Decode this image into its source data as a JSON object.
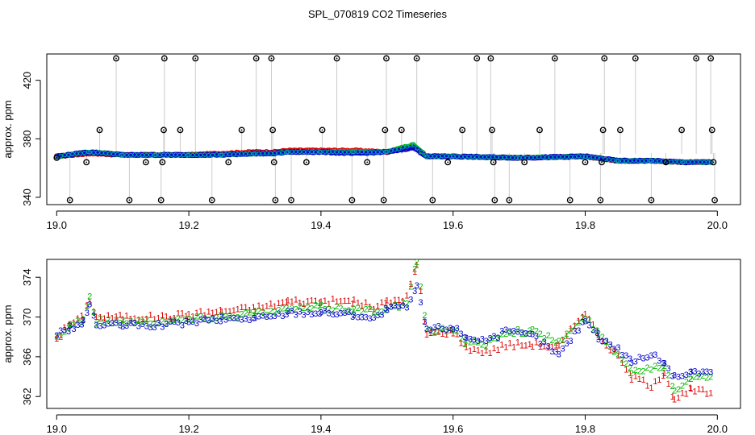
{
  "figure": {
    "title": "SPL_070819  CO2 Timeseries"
  },
  "colors": {
    "series1": "#dd0000",
    "series2": "#00bb00",
    "series3": "#0000cc",
    "outlier": "#000000",
    "spike": "#9a9a9a"
  },
  "chart_data": [
    {
      "id": "overview",
      "type": "scatter",
      "title": "SPL_070819  CO2 Timeseries",
      "xlabel": "",
      "ylabel": "approx. ppm",
      "xlim": [
        18.985,
        20.035
      ],
      "ylim": [
        335,
        438
      ],
      "xticks": [
        19.0,
        19.2,
        19.4,
        19.6,
        19.8,
        20.0
      ],
      "xtick_labels": [
        "19.0",
        "19.2",
        "19.4",
        "19.6",
        "19.8",
        "20.0"
      ],
      "yticks": [
        340,
        380,
        420
      ],
      "ytick_labels": [
        "340",
        "380",
        "420"
      ],
      "series": [
        {
          "name": "1",
          "color": "#dd0000",
          "x": [
            19.0,
            19.05,
            19.1,
            19.15,
            19.2,
            19.25,
            19.3,
            19.33,
            19.35,
            19.4,
            19.45,
            19.5,
            19.54,
            19.56,
            19.6,
            19.7,
            19.8,
            19.85,
            19.9,
            19.95,
            19.99
          ],
          "y": [
            368,
            370,
            369,
            369,
            369,
            370,
            371,
            371,
            372,
            372,
            372,
            371,
            375,
            368,
            368,
            367,
            368,
            365,
            365,
            364,
            364
          ]
        },
        {
          "name": "2",
          "color": "#00bb00",
          "x": [
            19.0,
            19.05,
            19.1,
            19.15,
            19.2,
            19.25,
            19.3,
            19.33,
            19.35,
            19.4,
            19.45,
            19.5,
            19.54,
            19.56,
            19.6,
            19.7,
            19.8,
            19.85,
            19.9,
            19.95,
            19.99
          ],
          "y": [
            368,
            371,
            369,
            369,
            369,
            369,
            370,
            370,
            371,
            371,
            371,
            371,
            376,
            368,
            368,
            367,
            368,
            365,
            365,
            364,
            364
          ]
        },
        {
          "name": "3",
          "color": "#0000cc",
          "x": [
            19.0,
            19.05,
            19.1,
            19.15,
            19.2,
            19.25,
            19.3,
            19.33,
            19.35,
            19.4,
            19.45,
            19.5,
            19.54,
            19.56,
            19.6,
            19.7,
            19.8,
            19.85,
            19.9,
            19.95,
            19.99
          ],
          "y": [
            368,
            371,
            369,
            369,
            369,
            369,
            370,
            370,
            371,
            371,
            370,
            371,
            374,
            368,
            368,
            367,
            368,
            365,
            365,
            364,
            364
          ]
        }
      ],
      "outliers": [
        {
          "x": 19.0,
          "y": 367
        },
        {
          "x": 19.02,
          "y": 338
        },
        {
          "x": 19.045,
          "y": 364
        },
        {
          "x": 19.065,
          "y": 386
        },
        {
          "x": 19.09,
          "y": 435
        },
        {
          "x": 19.11,
          "y": 338
        },
        {
          "x": 19.135,
          "y": 364
        },
        {
          "x": 19.158,
          "y": 338
        },
        {
          "x": 19.16,
          "y": 364
        },
        {
          "x": 19.162,
          "y": 386
        },
        {
          "x": 19.163,
          "y": 435
        },
        {
          "x": 19.187,
          "y": 386
        },
        {
          "x": 19.21,
          "y": 435
        },
        {
          "x": 19.235,
          "y": 338
        },
        {
          "x": 19.26,
          "y": 364
        },
        {
          "x": 19.28,
          "y": 386
        },
        {
          "x": 19.302,
          "y": 435
        },
        {
          "x": 19.325,
          "y": 435
        },
        {
          "x": 19.327,
          "y": 386
        },
        {
          "x": 19.329,
          "y": 364
        },
        {
          "x": 19.331,
          "y": 338
        },
        {
          "x": 19.355,
          "y": 338
        },
        {
          "x": 19.378,
          "y": 364
        },
        {
          "x": 19.402,
          "y": 386
        },
        {
          "x": 19.424,
          "y": 435
        },
        {
          "x": 19.447,
          "y": 338
        },
        {
          "x": 19.47,
          "y": 364
        },
        {
          "x": 19.495,
          "y": 338
        },
        {
          "x": 19.497,
          "y": 386
        },
        {
          "x": 19.499,
          "y": 435
        },
        {
          "x": 19.522,
          "y": 386
        },
        {
          "x": 19.545,
          "y": 435
        },
        {
          "x": 19.569,
          "y": 338
        },
        {
          "x": 19.592,
          "y": 364
        },
        {
          "x": 19.614,
          "y": 386
        },
        {
          "x": 19.636,
          "y": 435
        },
        {
          "x": 19.657,
          "y": 435
        },
        {
          "x": 19.659,
          "y": 386
        },
        {
          "x": 19.661,
          "y": 364
        },
        {
          "x": 19.663,
          "y": 338
        },
        {
          "x": 19.685,
          "y": 338
        },
        {
          "x": 19.708,
          "y": 364
        },
        {
          "x": 19.731,
          "y": 386
        },
        {
          "x": 19.754,
          "y": 435
        },
        {
          "x": 19.777,
          "y": 338
        },
        {
          "x": 19.8,
          "y": 364
        },
        {
          "x": 19.823,
          "y": 338
        },
        {
          "x": 19.825,
          "y": 364
        },
        {
          "x": 19.827,
          "y": 386
        },
        {
          "x": 19.829,
          "y": 435
        },
        {
          "x": 19.853,
          "y": 386
        },
        {
          "x": 19.876,
          "y": 435
        },
        {
          "x": 19.9,
          "y": 338
        },
        {
          "x": 19.922,
          "y": 364
        },
        {
          "x": 19.946,
          "y": 386
        },
        {
          "x": 19.968,
          "y": 435
        },
        {
          "x": 19.99,
          "y": 435
        },
        {
          "x": 19.992,
          "y": 386
        },
        {
          "x": 19.994,
          "y": 364
        },
        {
          "x": 19.996,
          "y": 338
        }
      ],
      "gridlines": false
    },
    {
      "id": "detail",
      "type": "scatter",
      "title": "",
      "xlabel": "",
      "ylabel": "approx. ppm",
      "xlim": [
        18.985,
        20.035
      ],
      "ylim": [
        360.8,
        375.8
      ],
      "xticks": [
        19.0,
        19.2,
        19.4,
        19.6,
        19.8,
        20.0
      ],
      "xtick_labels": [
        "19.0",
        "19.2",
        "19.4",
        "19.6",
        "19.8",
        "20.0"
      ],
      "yticks": [
        362,
        366,
        370,
        374
      ],
      "ytick_labels": [
        "362",
        "366",
        "370",
        "374"
      ],
      "marker_labels": [
        "1",
        "2",
        "3"
      ],
      "series": [
        {
          "name": "1",
          "color": "#dd0000",
          "x": [
            19.0,
            19.02,
            19.04,
            19.05,
            19.06,
            19.1,
            19.16,
            19.2,
            19.25,
            19.3,
            19.33,
            19.35,
            19.4,
            19.45,
            19.48,
            19.5,
            19.53,
            19.545,
            19.56,
            19.6,
            19.62,
            19.65,
            19.68,
            19.72,
            19.76,
            19.8,
            19.82,
            19.85,
            19.87,
            19.9,
            19.92,
            19.935,
            19.96,
            19.99
          ],
          "y": [
            368.0,
            369.3,
            370.0,
            371.8,
            370.0,
            370.0,
            370.0,
            370.3,
            370.6,
            370.9,
            371.3,
            371.6,
            371.6,
            371.6,
            371.0,
            371.5,
            372.0,
            375.2,
            368.3,
            368.6,
            367.0,
            366.5,
            367.2,
            367.3,
            367.0,
            370.6,
            368.2,
            366.0,
            364.0,
            363.2,
            364.5,
            361.6,
            362.7,
            362.4
          ]
        },
        {
          "name": "2",
          "color": "#00bb00",
          "x": [
            19.0,
            19.02,
            19.04,
            19.05,
            19.06,
            19.1,
            19.16,
            19.2,
            19.25,
            19.3,
            19.33,
            19.35,
            19.4,
            19.45,
            19.48,
            19.5,
            19.53,
            19.545,
            19.56,
            19.6,
            19.62,
            19.65,
            19.68,
            19.72,
            19.76,
            19.8,
            19.82,
            19.85,
            19.87,
            19.9,
            19.92,
            19.935,
            19.96,
            19.99
          ],
          "y": [
            367.9,
            369.2,
            369.8,
            372.0,
            369.6,
            369.6,
            369.6,
            369.8,
            370.1,
            370.4,
            370.6,
            370.8,
            371.0,
            370.8,
            370.6,
            371.0,
            371.3,
            375.7,
            368.6,
            368.9,
            367.4,
            367.3,
            368.6,
            368.6,
            367.5,
            370.0,
            368.3,
            366.4,
            364.6,
            364.9,
            365.2,
            362.7,
            364.0,
            364.0
          ]
        },
        {
          "name": "3",
          "color": "#0000cc",
          "x": [
            19.0,
            19.02,
            19.04,
            19.05,
            19.06,
            19.1,
            19.16,
            19.2,
            19.25,
            19.3,
            19.33,
            19.35,
            19.4,
            19.45,
            19.48,
            19.5,
            19.53,
            19.545,
            19.56,
            19.6,
            19.62,
            19.65,
            19.68,
            19.72,
            19.76,
            19.8,
            19.82,
            19.85,
            19.87,
            19.9,
            19.92,
            19.935,
            19.96,
            19.99
          ],
          "y": [
            368.3,
            368.9,
            369.4,
            371.4,
            369.2,
            369.2,
            369.2,
            369.5,
            369.8,
            369.9,
            370.1,
            370.5,
            370.5,
            370.3,
            369.8,
            370.8,
            371.0,
            373.0,
            368.8,
            369.0,
            368.0,
            367.7,
            368.5,
            368.2,
            366.2,
            369.8,
            368.0,
            366.8,
            365.6,
            366.2,
            365.5,
            363.9,
            364.5,
            364.5
          ]
        }
      ],
      "gridlines": false
    }
  ]
}
